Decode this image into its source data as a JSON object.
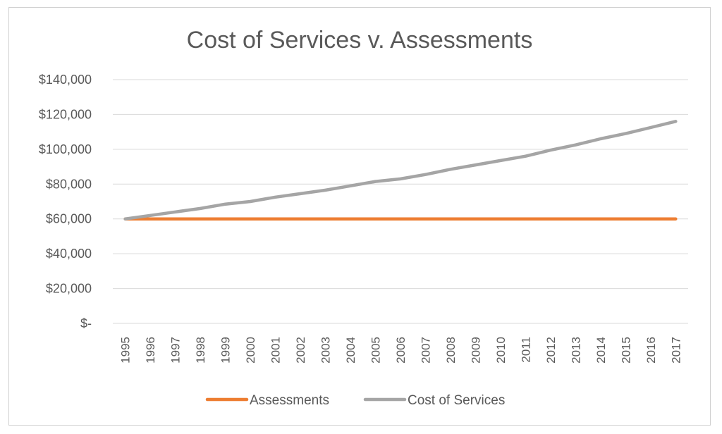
{
  "chart_data": {
    "type": "line",
    "title": "Cost of Services v. Assessments",
    "xlabel": "",
    "ylabel": "",
    "x": [
      "1995",
      "1996",
      "1997",
      "1998",
      "1999",
      "2000",
      "2001",
      "2002",
      "2003",
      "2004",
      "2005",
      "2006",
      "2007",
      "2008",
      "2009",
      "2010",
      "2011",
      "2012",
      "2013",
      "2014",
      "2015",
      "2016",
      "2017"
    ],
    "ylim": [
      0,
      140000
    ],
    "yticks": [
      0,
      20000,
      40000,
      60000,
      80000,
      100000,
      120000,
      140000
    ],
    "ytick_labels": [
      "$-",
      "$20,000",
      "$40,000",
      "$60,000",
      "$80,000",
      "$100,000",
      "$120,000",
      "$140,000"
    ],
    "grid": true,
    "legend_position": "bottom",
    "series": [
      {
        "name": "Assessments",
        "color": "#ED7D31",
        "values": [
          60000,
          60000,
          60000,
          60000,
          60000,
          60000,
          60000,
          60000,
          60000,
          60000,
          60000,
          60000,
          60000,
          60000,
          60000,
          60000,
          60000,
          60000,
          60000,
          60000,
          60000,
          60000,
          60000
        ]
      },
      {
        "name": "Cost of Services",
        "color": "#A5A5A5",
        "values": [
          60000,
          62000,
          64000,
          66000,
          68500,
          70000,
          72500,
          74500,
          76500,
          79000,
          81500,
          83000,
          85500,
          88500,
          91000,
          93500,
          96000,
          99500,
          102500,
          106000,
          109000,
          112500,
          116000
        ]
      }
    ]
  }
}
